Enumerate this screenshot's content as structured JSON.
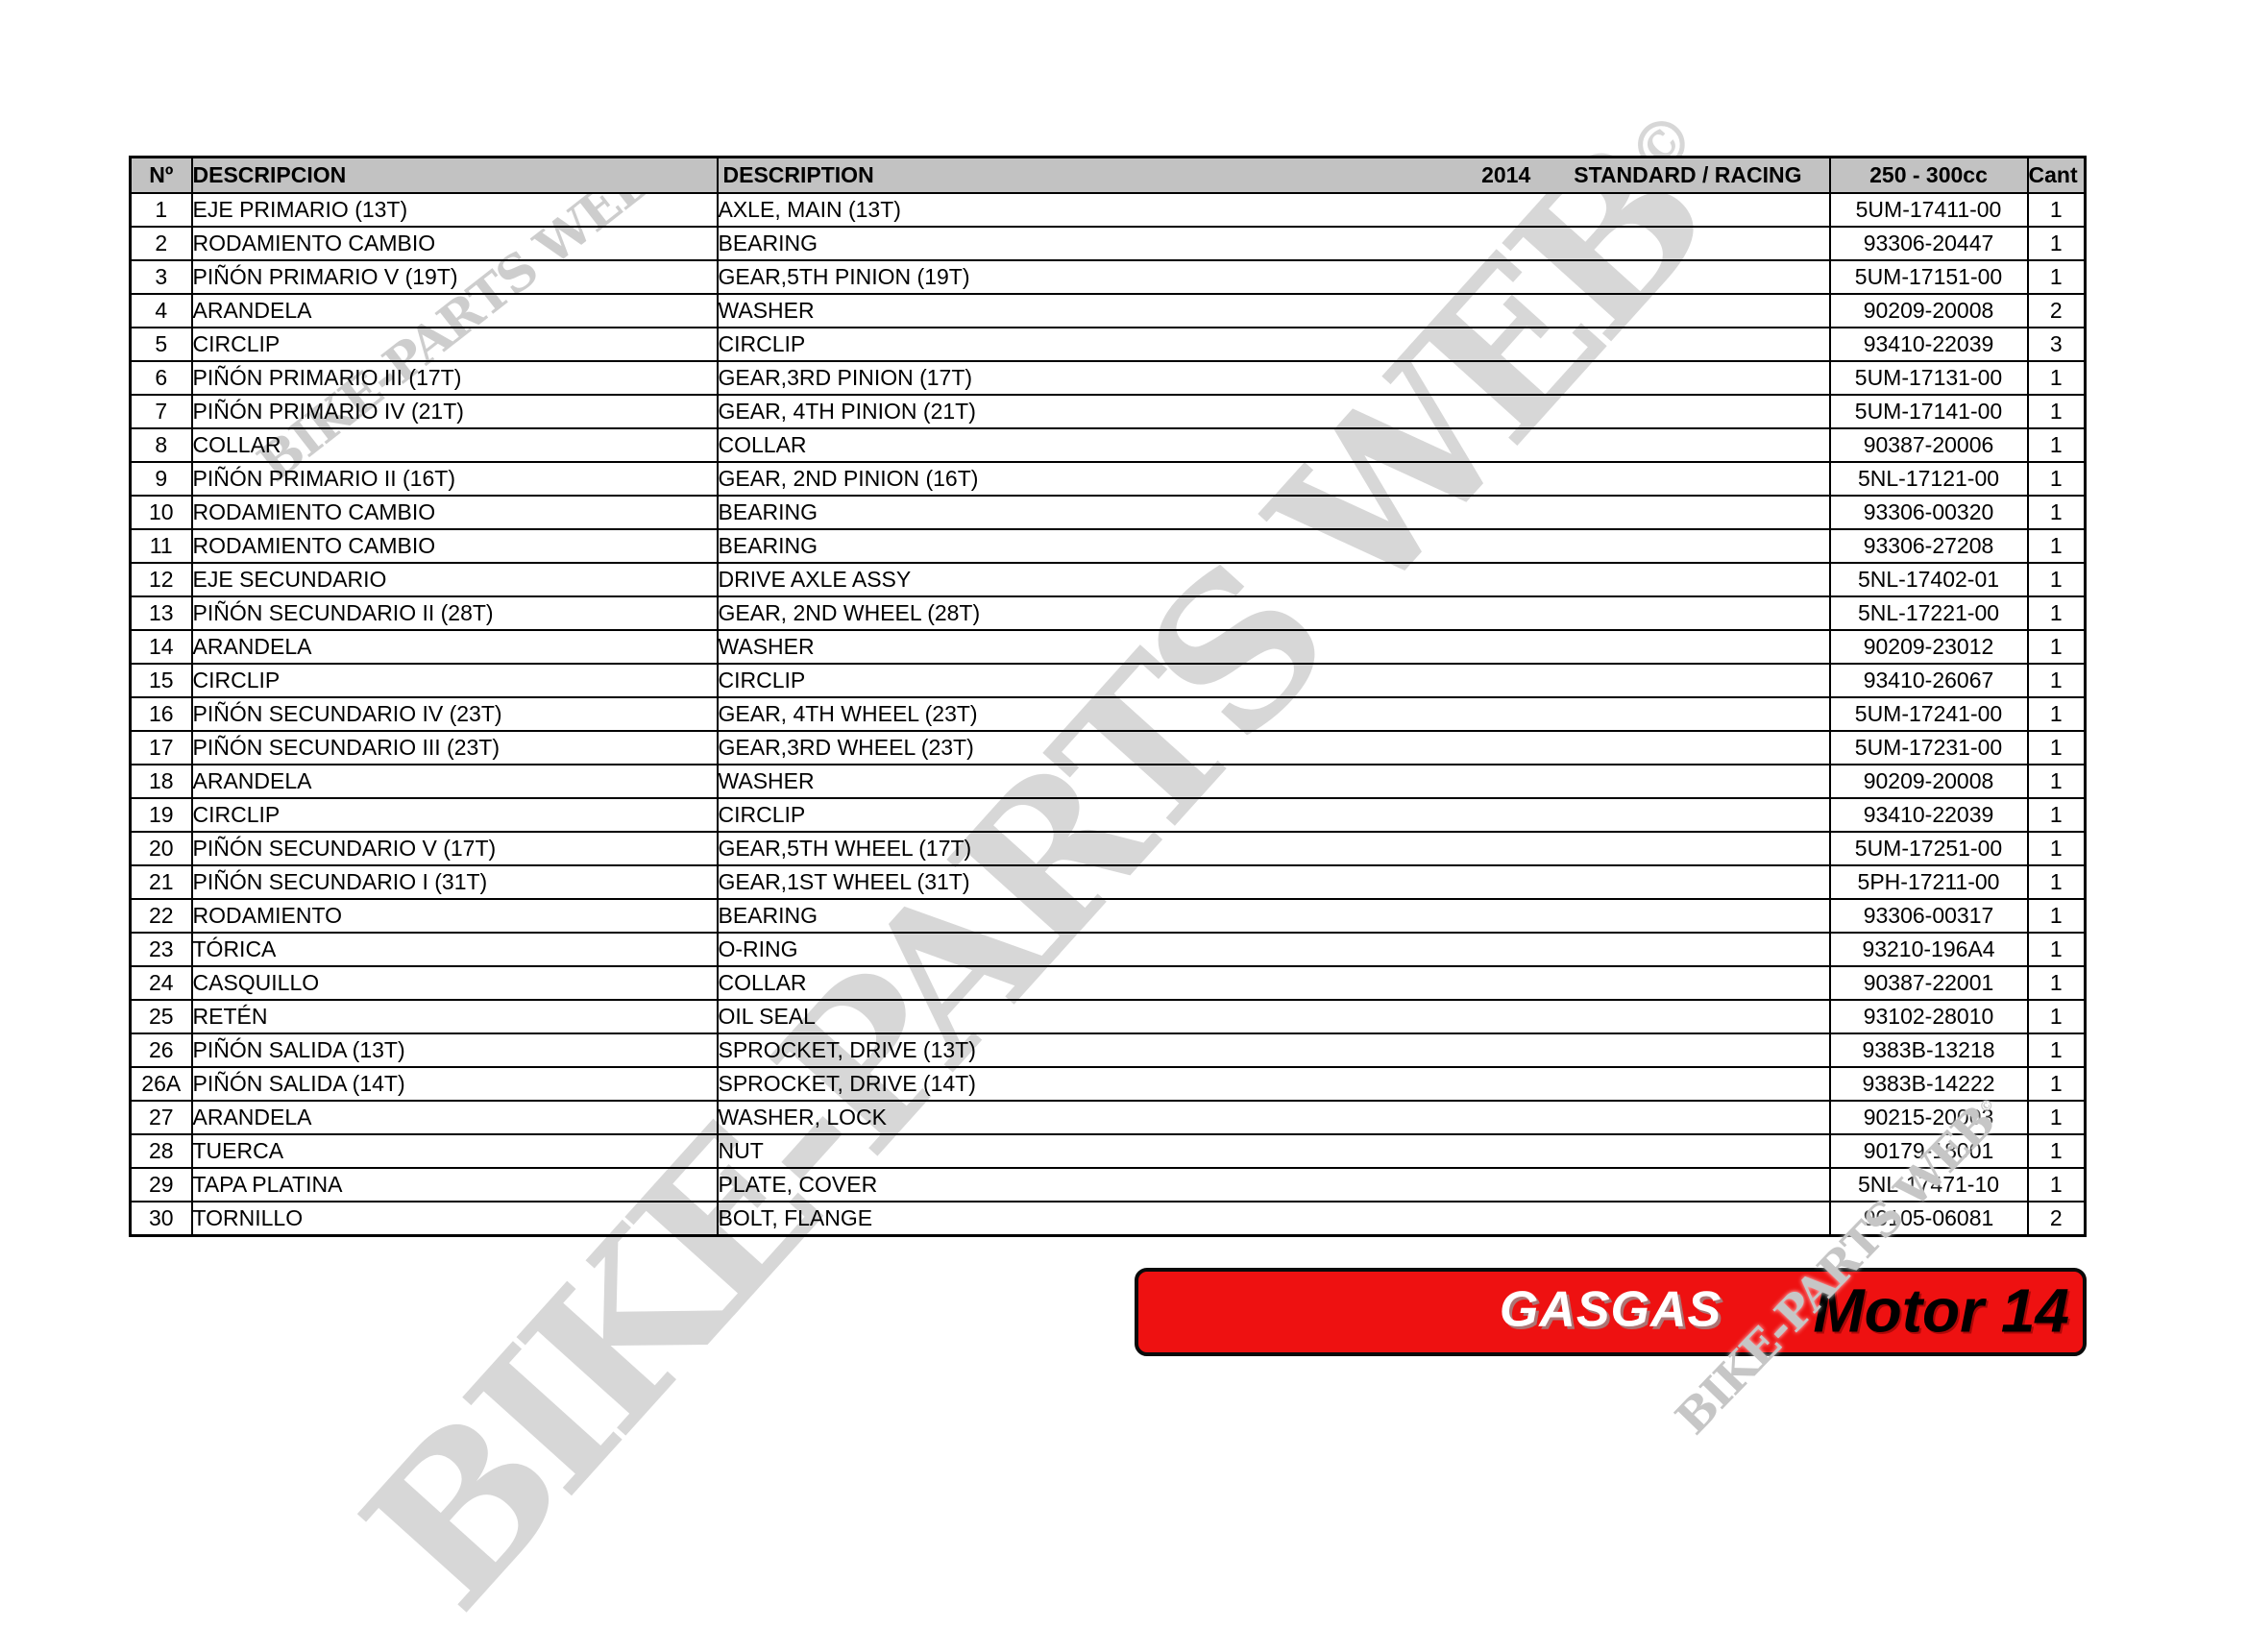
{
  "watermark": {
    "text": "BIKE-PARTS WEB",
    "symbol": "©"
  },
  "table": {
    "headers": {
      "no": "Nº",
      "descripcion": "DESCRIPCION",
      "description": "DESCRIPTION",
      "year": "2014",
      "variant": "STANDARD / RACING",
      "cc": "250 - 300cc",
      "qty": "Cant"
    },
    "rows": [
      {
        "no": "1",
        "descripcion": "EJE PRIMARIO (13T)",
        "description": "AXLE, MAIN (13T)",
        "part": "5UM-17411-00",
        "qty": "1"
      },
      {
        "no": "2",
        "descripcion": "RODAMIENTO CAMBIO",
        "description": "BEARING",
        "part": "93306-20447",
        "qty": "1"
      },
      {
        "no": "3",
        "descripcion": "PIÑÓN PRIMARIO V (19T)",
        "description": "GEAR,5TH PINION (19T)",
        "part": "5UM-17151-00",
        "qty": "1"
      },
      {
        "no": "4",
        "descripcion": "ARANDELA",
        "description": "WASHER",
        "part": "90209-20008",
        "qty": "2"
      },
      {
        "no": "5",
        "descripcion": "CIRCLIP",
        "description": "CIRCLIP",
        "part": "93410-22039",
        "qty": "3"
      },
      {
        "no": "6",
        "descripcion": "PIÑÓN PRIMARIO III (17T)",
        "description": "GEAR,3RD PINION (17T)",
        "part": "5UM-17131-00",
        "qty": "1"
      },
      {
        "no": "7",
        "descripcion": "PIÑÓN PRIMARIO IV (21T)",
        "description": "GEAR, 4TH PINION (21T)",
        "part": "5UM-17141-00",
        "qty": "1"
      },
      {
        "no": "8",
        "descripcion": "COLLAR",
        "description": "COLLAR",
        "part": "90387-20006",
        "qty": "1"
      },
      {
        "no": "9",
        "descripcion": "PIÑÓN PRIMARIO II (16T)",
        "description": "GEAR, 2ND PINION (16T)",
        "part": "5NL-17121-00",
        "qty": "1"
      },
      {
        "no": "10",
        "descripcion": "RODAMIENTO CAMBIO",
        "description": "BEARING",
        "part": "93306-00320",
        "qty": "1"
      },
      {
        "no": "11",
        "descripcion": "RODAMIENTO CAMBIO",
        "description": "BEARING",
        "part": "93306-27208",
        "qty": "1"
      },
      {
        "no": "12",
        "descripcion": "EJE SECUNDARIO",
        "description": "DRIVE AXLE ASSY",
        "part": "5NL-17402-01",
        "qty": "1"
      },
      {
        "no": "13",
        "descripcion": "PIÑÓN SECUNDARIO II (28T)",
        "description": "GEAR, 2ND WHEEL (28T)",
        "part": "5NL-17221-00",
        "qty": "1"
      },
      {
        "no": "14",
        "descripcion": "ARANDELA",
        "description": "WASHER",
        "part": "90209-23012",
        "qty": "1"
      },
      {
        "no": "15",
        "descripcion": "CIRCLIP",
        "description": "CIRCLIP",
        "part": "93410-26067",
        "qty": "1"
      },
      {
        "no": "16",
        "descripcion": "PIÑÓN SECUNDARIO IV (23T)",
        "description": "GEAR, 4TH WHEEL (23T)",
        "part": "5UM-17241-00",
        "qty": "1"
      },
      {
        "no": "17",
        "descripcion": "PIÑÓN SECUNDARIO III (23T)",
        "description": "GEAR,3RD WHEEL (23T)",
        "part": "5UM-17231-00",
        "qty": "1"
      },
      {
        "no": "18",
        "descripcion": "ARANDELA",
        "description": "WASHER",
        "part": "90209-20008",
        "qty": "1"
      },
      {
        "no": "19",
        "descripcion": "CIRCLIP",
        "description": "CIRCLIP",
        "part": "93410-22039",
        "qty": "1"
      },
      {
        "no": "20",
        "descripcion": "PIÑÓN SECUNDARIO V (17T)",
        "description": "GEAR,5TH WHEEL (17T)",
        "part": "5UM-17251-00",
        "qty": "1"
      },
      {
        "no": "21",
        "descripcion": "PIÑÓN SECUNDARIO I (31T)",
        "description": "GEAR,1ST WHEEL (31T)",
        "part": "5PH-17211-00",
        "qty": "1"
      },
      {
        "no": "22",
        "descripcion": "RODAMIENTO",
        "description": "BEARING",
        "part": "93306-00317",
        "qty": "1"
      },
      {
        "no": "23",
        "descripcion": "TÓRICA",
        "description": "O-RING",
        "part": "93210-196A4",
        "qty": "1"
      },
      {
        "no": "24",
        "descripcion": "CASQUILLO",
        "description": "COLLAR",
        "part": "90387-22001",
        "qty": "1"
      },
      {
        "no": "25",
        "descripcion": "RETÉN",
        "description": "OIL SEAL",
        "part": "93102-28010",
        "qty": "1"
      },
      {
        "no": "26",
        "descripcion": "PIÑÓN SALIDA (13T)",
        "description": "SPROCKET, DRIVE (13T)",
        "part": "9383B-13218",
        "qty": "1"
      },
      {
        "no": "26A",
        "descripcion": "PIÑÓN SALIDA (14T)",
        "description": "SPROCKET, DRIVE (14T)",
        "part": "9383B-14222",
        "qty": "1"
      },
      {
        "no": "27",
        "descripcion": "ARANDELA",
        "description": "WASHER, LOCK",
        "part": "90215-20003",
        "qty": "1"
      },
      {
        "no": "28",
        "descripcion": "TUERCA",
        "description": "NUT",
        "part": "90179-18001",
        "qty": "1"
      },
      {
        "no": "29",
        "descripcion": "TAPA PLATINA",
        "description": "PLATE, COVER",
        "part": "5NL-17471-10",
        "qty": "1"
      },
      {
        "no": "30",
        "descripcion": "TORNILLO",
        "description": "BOLT, FLANGE",
        "part": "90105-06081",
        "qty": "2"
      }
    ]
  },
  "banner": {
    "brand": "GASGAS",
    "label": "Motor 14",
    "red": "#ee1111"
  }
}
